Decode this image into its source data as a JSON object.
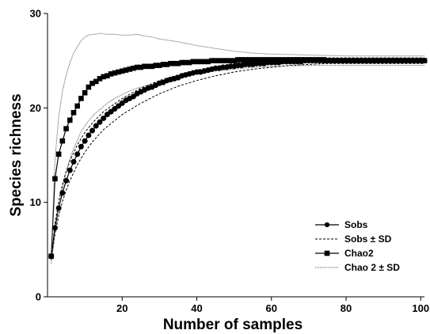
{
  "chart_data": {
    "type": "line",
    "xlabel": "Number of samples",
    "ylabel": "Species richness",
    "xlim": [
      0,
      101
    ],
    "ylim": [
      0,
      30
    ],
    "x_ticks": [
      20,
      40,
      60,
      80,
      100
    ],
    "y_ticks": [
      0,
      10,
      20,
      30
    ],
    "grid": false,
    "legend_position": "bottom-right",
    "series": [
      {
        "name": "Sobs",
        "style": "line-circle-markers",
        "color": "#000000",
        "x": [
          1,
          2,
          3,
          4,
          5,
          6,
          7,
          8,
          9,
          10,
          11,
          12,
          13,
          14,
          15,
          16,
          17,
          18,
          19,
          20,
          21,
          22,
          23,
          24,
          25,
          26,
          27,
          28,
          29,
          30,
          31,
          32,
          33,
          34,
          35,
          36,
          37,
          38,
          39,
          40,
          41,
          42,
          43,
          44,
          45,
          46,
          47,
          48,
          49,
          50,
          51,
          52,
          53,
          54,
          55,
          56,
          57,
          58,
          59,
          60,
          61,
          62,
          63,
          64,
          65,
          66,
          67,
          68,
          69,
          70,
          71,
          72,
          73,
          74,
          75,
          76,
          77,
          78,
          79,
          80,
          81,
          82,
          83,
          84,
          85,
          86,
          87,
          88,
          89,
          90,
          91,
          92,
          93,
          94,
          95,
          96,
          97,
          98,
          99,
          100,
          101
        ],
        "values": [
          4.3,
          7.3,
          9.4,
          11.0,
          12.3,
          13.4,
          14.3,
          15.1,
          15.9,
          16.5,
          17.1,
          17.6,
          18.1,
          18.5,
          18.9,
          19.3,
          19.6,
          19.9,
          20.2,
          20.5,
          20.8,
          21.0,
          21.2,
          21.5,
          21.7,
          21.9,
          22.1,
          22.2,
          22.4,
          22.6,
          22.7,
          22.9,
          23.0,
          23.1,
          23.2,
          23.4,
          23.5,
          23.6,
          23.7,
          23.8,
          23.8,
          23.9,
          24.0,
          24.1,
          24.2,
          24.2,
          24.3,
          24.3,
          24.4,
          24.4,
          24.5,
          24.5,
          24.6,
          24.6,
          24.6,
          24.7,
          24.7,
          24.7,
          24.8,
          24.8,
          24.8,
          24.8,
          24.9,
          24.9,
          24.9,
          24.9,
          24.9,
          24.9,
          25.0,
          25.0,
          25.0,
          25.0,
          25.0,
          25.0,
          25.0,
          25.0,
          25.0,
          25.0,
          25.0,
          25.0,
          25.0,
          25.0,
          25.0,
          25.0,
          25.0,
          25.0,
          25.0,
          25.0,
          25.0,
          25.0,
          25.0,
          25.0,
          25.0,
          25.0,
          25.0,
          25.0,
          25.0,
          25.0,
          25.0,
          25.0,
          25.0
        ]
      },
      {
        "name": "Sobs ± SD",
        "style": "dashed",
        "color": "#000000",
        "x": [
          1,
          2,
          3,
          4,
          5,
          6,
          8,
          10,
          12,
          15,
          20,
          25,
          30,
          35,
          40,
          45,
          50,
          55,
          60,
          65,
          70,
          75,
          80,
          85,
          90,
          95,
          101
        ],
        "values": [
          4.0,
          7.7,
          10.1,
          11.9,
          13.3,
          14.4,
          16.1,
          17.4,
          18.4,
          19.6,
          21.0,
          22.1,
          22.9,
          23.5,
          24.0,
          24.4,
          24.7,
          24.9,
          25.1,
          25.2,
          25.3,
          25.3,
          25.3,
          25.3,
          25.3,
          25.3,
          25.3
        ],
        "values_lower": [
          3.9,
          6.6,
          8.6,
          10.1,
          11.3,
          12.3,
          14.0,
          15.3,
          16.4,
          17.7,
          19.3,
          20.5,
          21.5,
          22.3,
          22.9,
          23.4,
          23.8,
          24.1,
          24.3,
          24.5,
          24.6,
          24.7,
          24.7,
          24.7,
          24.7,
          24.7,
          24.7
        ]
      },
      {
        "name": "Chao2",
        "style": "line-square-markers",
        "color": "#000000",
        "x": [
          1,
          2,
          3,
          4,
          5,
          6,
          7,
          8,
          9,
          10,
          11,
          12,
          13,
          14,
          15,
          16,
          17,
          18,
          19,
          20,
          21,
          22,
          23,
          24,
          25,
          26,
          27,
          28,
          29,
          30,
          31,
          32,
          33,
          34,
          35,
          36,
          37,
          38,
          39,
          40,
          41,
          42,
          43,
          44,
          45,
          46,
          47,
          48,
          49,
          50,
          51,
          52,
          53,
          54,
          55,
          56,
          57,
          58,
          59,
          60,
          61,
          62,
          63,
          64,
          65,
          66,
          67,
          68,
          69,
          70,
          71,
          72,
          73,
          74,
          75,
          76,
          77,
          78,
          79,
          80,
          81,
          82,
          83,
          84,
          85,
          86,
          87,
          88,
          89,
          90,
          91,
          92,
          93,
          94,
          95,
          96,
          97,
          98,
          99,
          100,
          101
        ],
        "values": [
          4.3,
          12.5,
          15.1,
          16.5,
          17.8,
          18.7,
          19.5,
          20.2,
          21.0,
          21.6,
          22.2,
          22.6,
          22.8,
          23.1,
          23.3,
          23.4,
          23.6,
          23.7,
          23.8,
          23.9,
          24.0,
          24.1,
          24.2,
          24.3,
          24.3,
          24.4,
          24.4,
          24.4,
          24.5,
          24.5,
          24.6,
          24.6,
          24.7,
          24.7,
          24.7,
          24.8,
          24.8,
          24.8,
          24.9,
          24.9,
          24.9,
          24.9,
          24.9,
          25.0,
          25.0,
          25.0,
          25.0,
          25.0,
          25.0,
          25.0,
          25.1,
          25.1,
          25.1,
          25.1,
          25.1,
          25.1,
          25.1,
          25.1,
          25.1,
          25.1,
          25.1,
          25.1,
          25.1,
          25.1,
          25.1,
          25.1,
          25.1,
          25.1,
          25.1,
          25.1,
          25.1,
          25.1,
          25.1,
          25.1,
          25.0,
          25.0,
          25.0,
          25.0,
          25.0,
          25.0,
          25.0,
          25.0,
          25.0,
          25.0,
          25.0,
          25.0,
          25.0,
          25.0,
          25.0,
          25.0,
          25.0,
          25.0,
          25.0,
          25.0,
          25.0,
          25.0,
          25.0,
          25.0,
          25.0,
          25.0,
          25.0
        ]
      },
      {
        "name": "Chao 2 ± SD",
        "style": "dotted",
        "color": "#555555",
        "x": [
          1,
          2,
          3,
          4,
          5,
          6,
          7,
          8,
          9,
          10,
          11,
          12,
          13,
          14,
          16,
          18,
          20,
          22,
          24,
          26,
          28,
          30,
          35,
          40,
          45,
          50,
          55,
          60,
          70,
          80,
          90,
          101
        ],
        "values": [
          4.1,
          14.5,
          19.0,
          21.8,
          23.5,
          24.8,
          25.8,
          26.5,
          27.1,
          27.5,
          27.7,
          27.8,
          27.8,
          27.9,
          27.8,
          27.8,
          27.7,
          27.7,
          27.8,
          27.6,
          27.5,
          27.3,
          27.0,
          26.6,
          26.3,
          26.0,
          25.8,
          25.7,
          25.6,
          25.5,
          25.5,
          25.5
        ],
        "values_lower": [
          3.5,
          6.7,
          9.5,
          11.5,
          13.2,
          14.6,
          15.7,
          16.6,
          17.5,
          18.1,
          18.6,
          19.1,
          19.5,
          19.8,
          20.5,
          21.0,
          21.4,
          21.8,
          22.1,
          22.3,
          22.5,
          22.7,
          23.2,
          23.6,
          23.9,
          24.1,
          24.3,
          24.4,
          24.5,
          24.5,
          24.5,
          24.5
        ]
      }
    ]
  }
}
